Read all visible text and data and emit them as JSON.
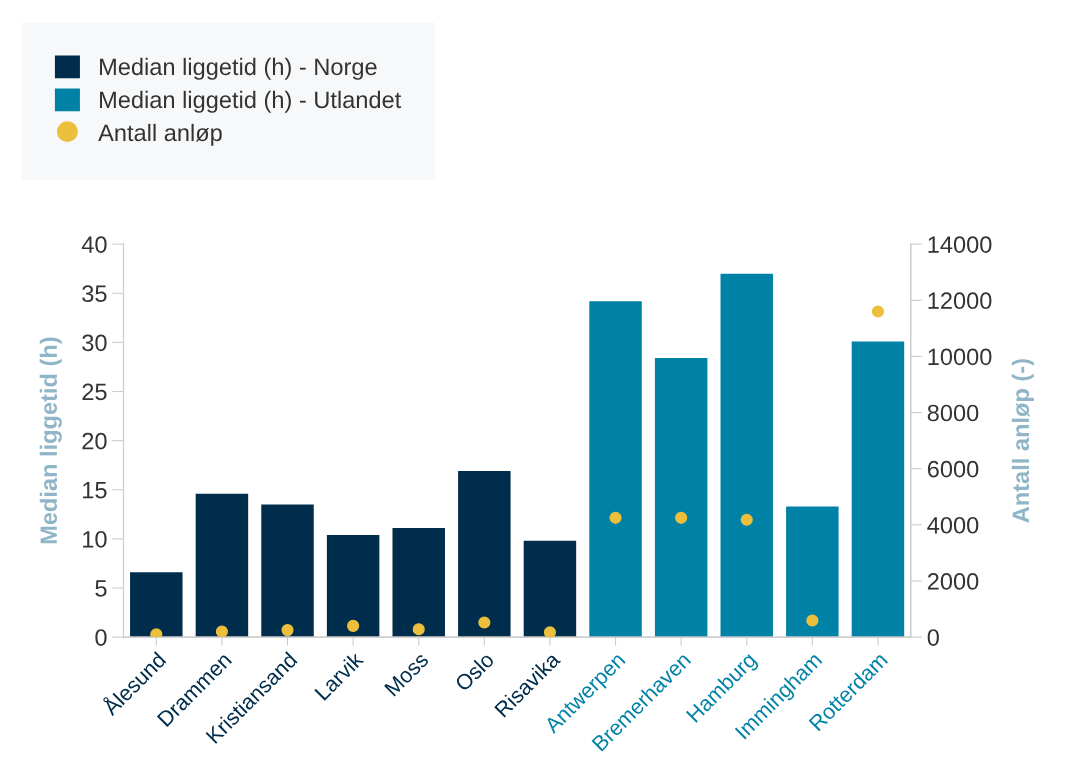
{
  "chart_data": {
    "type": "bar",
    "ylabel": "Median liggetid (h)",
    "y2label": "Antall anløp (-)",
    "categories": [
      "Ålesund",
      "Drammen",
      "Kristiansand",
      "Larvik",
      "Moss",
      "Oslo",
      "Risavika",
      "Antwerpen",
      "Bremerhaven",
      "Hamburg",
      "Immingham",
      "Rotterdam"
    ],
    "series": [
      {
        "name": "Median liggetid (h) - Norge",
        "color": "#002d4b",
        "values": [
          6.6,
          14.6,
          13.5,
          10.4,
          11.1,
          16.9,
          9.8,
          null,
          null,
          null,
          null,
          null
        ]
      },
      {
        "name": "Median liggetid (h) - Utlandet",
        "color": "#0082a6",
        "values": [
          null,
          null,
          null,
          null,
          null,
          null,
          null,
          34.2,
          28.4,
          37.0,
          13.3,
          30.1
        ]
      },
      {
        "name": "Antall anløp",
        "type": "scatter",
        "axis": "y2",
        "marker": "circle",
        "color": "#ecbf3c",
        "values": [
          100,
          200,
          250,
          400,
          280,
          520,
          170,
          4250,
          4250,
          4180,
          590,
          11600
        ]
      }
    ],
    "ylim": [
      0,
      40
    ],
    "yticks": [
      0,
      5,
      10,
      15,
      20,
      25,
      30,
      35,
      40
    ],
    "y2lim": [
      0,
      14000
    ],
    "y2ticks": [
      0,
      2000,
      4000,
      6000,
      8000,
      10000,
      12000,
      14000
    ],
    "grid": false,
    "legend": "top left"
  }
}
